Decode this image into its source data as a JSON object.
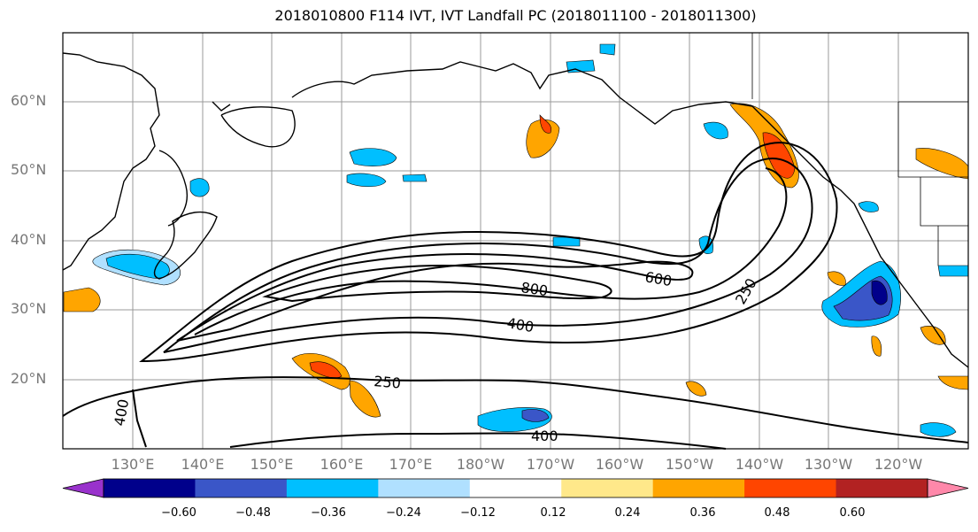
{
  "title": "2018010800 F114 IVT, IVT Landfall PC (2018011100 - 2018011300)",
  "lat_labels": [
    "60°N",
    "50°N",
    "40°N",
    "30°N",
    "20°N"
  ],
  "lon_labels": [
    "130°E",
    "140°E",
    "150°E",
    "160°E",
    "170°E",
    "180°W",
    "170°W",
    "160°W",
    "150°W",
    "140°W",
    "130°W",
    "120°W"
  ],
  "contour_labels": [
    "800",
    "600",
    "400",
    "250",
    "250",
    "400",
    "400"
  ],
  "colorbar": {
    "tick_labels": [
      "−0.60",
      "−0.48",
      "−0.36",
      "−0.24",
      "−0.12",
      "0.12",
      "0.24",
      "0.36",
      "0.48",
      "0.60"
    ],
    "colors": [
      "#9932cc",
      "#00008b",
      "#3a56c8",
      "#00bfff",
      "#b0e0ff",
      "#ffffff",
      "#ffe88a",
      "#ffa500",
      "#ff4500",
      "#b22222",
      "#ff88aa"
    ]
  },
  "colors": {
    "grid": "#999999",
    "contour": "#000000",
    "neg_light": "#b0e0ff",
    "neg_mid": "#00bfff",
    "neg_strong": "#3a56c8",
    "neg_max": "#00008b",
    "pos_light": "#ffe88a",
    "pos_mid": "#ffa500",
    "pos_strong": "#ff4500",
    "pos_max": "#b22222"
  }
}
